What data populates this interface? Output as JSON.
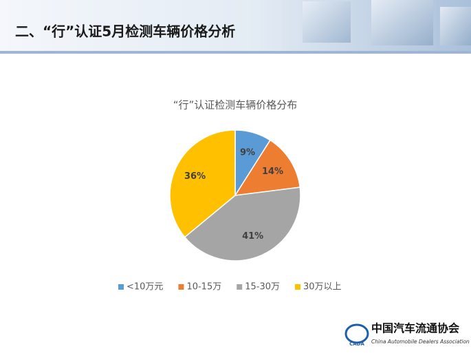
{
  "header": {
    "title": "二、“行”认证5月检测车辆价格分析"
  },
  "chart_data": {
    "type": "pie",
    "title": "“行”认证检测车辆价格分布",
    "categories": [
      "<10万元",
      "10-15万",
      "15-30万",
      "30万以上"
    ],
    "values": [
      9,
      14,
      41,
      36
    ],
    "value_labels": [
      "9%",
      "14%",
      "41%",
      "36%"
    ],
    "colors": [
      "#5b9bd5",
      "#ed7d31",
      "#a5a5a5",
      "#ffc000"
    ],
    "legend": "bottom"
  },
  "logo": {
    "name": "中国汽车流通协会",
    "english": "China Automobile Dealers Association",
    "abbr": "CADA"
  }
}
